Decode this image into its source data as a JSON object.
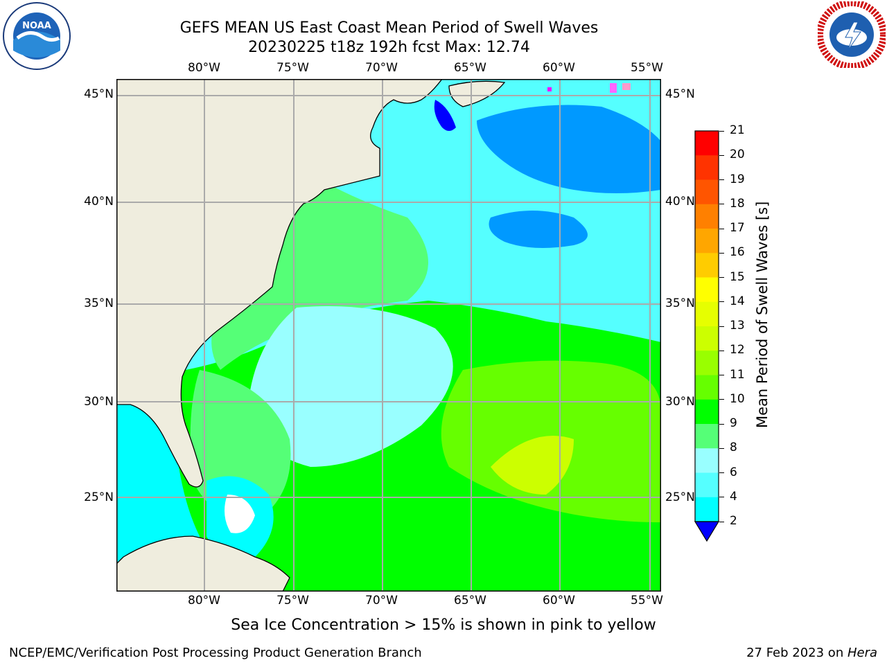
{
  "title": {
    "line1": "GEFS MEAN US East Coast Mean Period of Swell Waves",
    "line2": "20230225 t18z 192h fcst   Max: 12.74"
  },
  "map": {
    "lon_labels": [
      "80°W",
      "75°W",
      "70°W",
      "65°W",
      "60°W",
      "55°W"
    ],
    "lat_labels": [
      "45°N",
      "40°N",
      "35°N",
      "30°N",
      "25°N"
    ],
    "land_color": "#efedde",
    "ocean_base": "#00ff00"
  },
  "colorbar": {
    "label": "Mean Period of Swell Waves [s]",
    "ticks": [
      "21",
      "20",
      "19",
      "18",
      "17",
      "16",
      "15",
      "14",
      "13",
      "12",
      "11",
      "10",
      "9",
      "8",
      "6",
      "4",
      "2"
    ],
    "colors": [
      "#ff0000",
      "#ff3300",
      "#ff5500",
      "#ff8000",
      "#ffa600",
      "#ffcc00",
      "#ffff00",
      "#e6ff00",
      "#ccff00",
      "#99ff00",
      "#66ff00",
      "#00ff00",
      "#55ff77",
      "#99ffff",
      "#55ffff",
      "#00ffff",
      "#0099ff",
      "#0000ff"
    ]
  },
  "logos": {
    "left": {
      "icon": "noaa-logo",
      "text": "NOAA"
    },
    "right": {
      "icon": "nws-logo",
      "text": "NATIONAL WEATHER SERVICE"
    }
  },
  "subtitle": "Sea Ice Concentration > 15% is shown in pink to yellow",
  "footer": {
    "left": "NCEP/EMC/Verification Post Processing Product Generation Branch",
    "right_date": "27 Feb 2023 on ",
    "right_host": "Hera"
  }
}
